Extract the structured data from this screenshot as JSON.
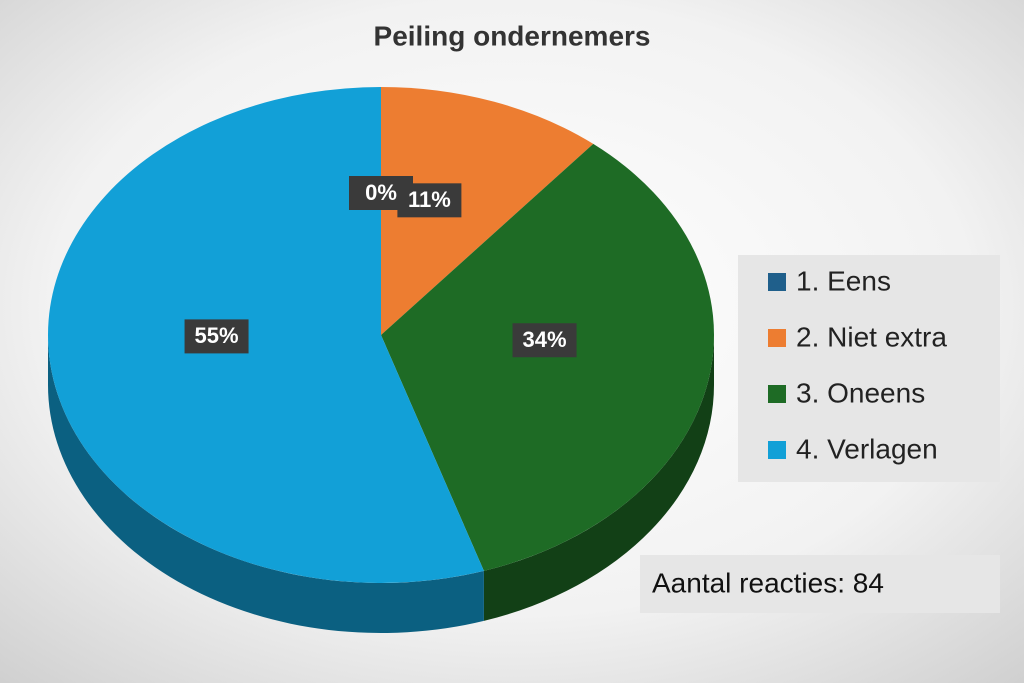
{
  "chart_data": {
    "type": "pie",
    "title": "Peiling ondernemers",
    "categories": [
      "1. Eens",
      "2. Niet extra",
      "3. Oneens",
      "4. Verlagen"
    ],
    "values": [
      0,
      11,
      34,
      55
    ],
    "value_labels": [
      "0%",
      "11%",
      "34%",
      "55%"
    ],
    "colors": [
      "#1f5f8b",
      "#ed7d31",
      "#1e6b25",
      "#12a0d7"
    ],
    "legend": "right",
    "annotation": "Aantal reacties: 84"
  }
}
